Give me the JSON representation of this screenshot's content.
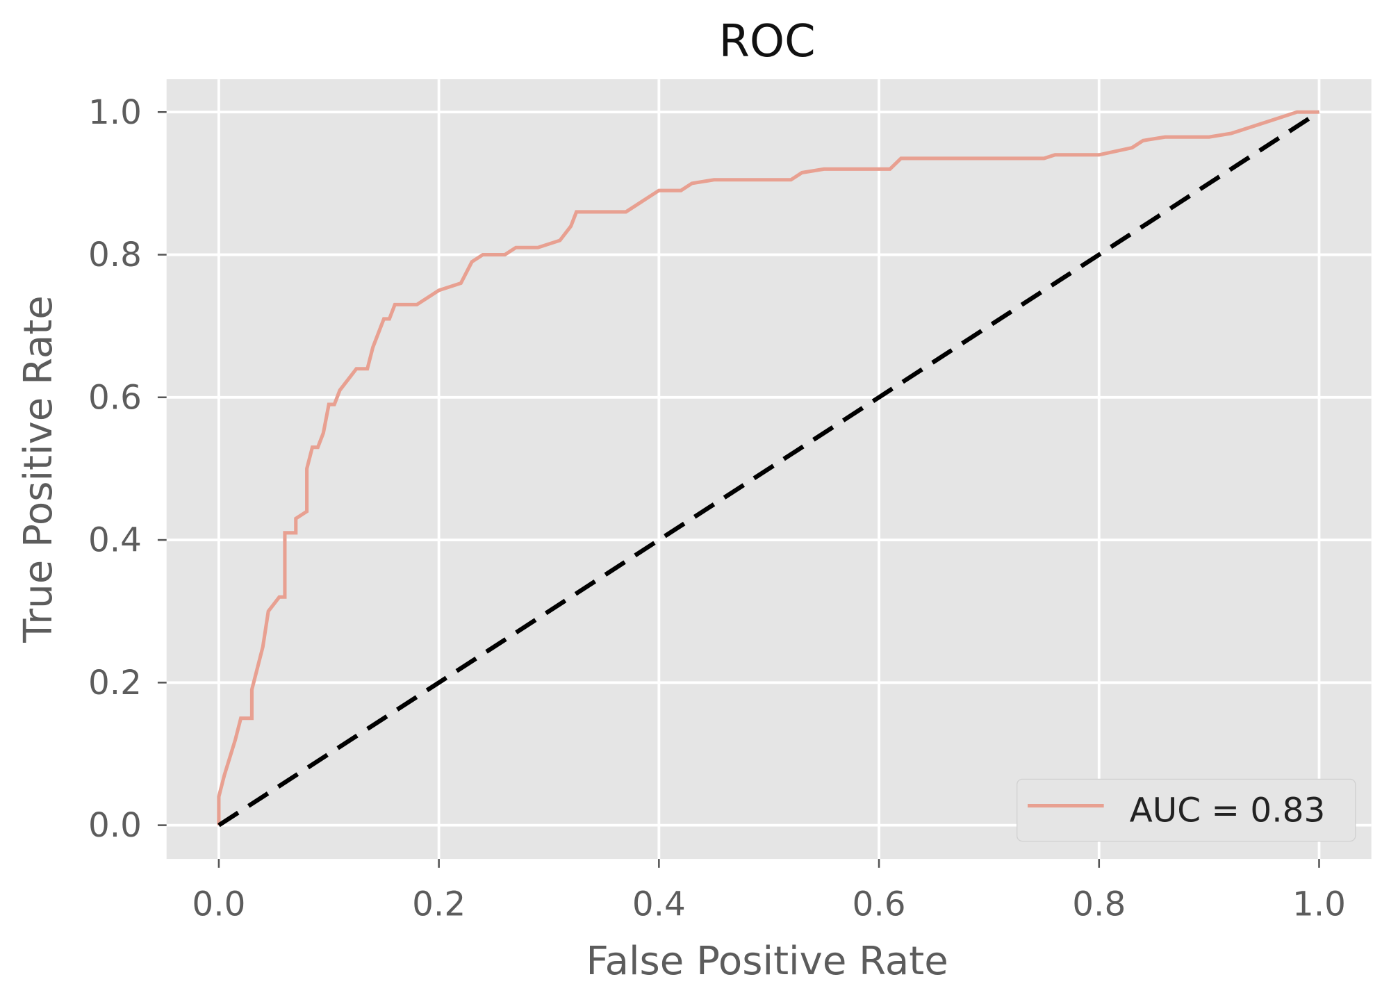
{
  "chart_data": {
    "type": "line",
    "title": "ROC",
    "xlabel": "False Positive Rate",
    "ylabel": "True Positive Rate",
    "xlim": [
      -0.05,
      1.05
    ],
    "ylim": [
      -0.05,
      1.05
    ],
    "xticks": [
      "0.0",
      "0.2",
      "0.4",
      "0.6",
      "0.8",
      "1.0"
    ],
    "yticks": [
      "0.0",
      "0.2",
      "0.4",
      "0.6",
      "0.8",
      "1.0"
    ],
    "grid": true,
    "legend_position": "lower-right",
    "background": "#e5e5e5",
    "series": [
      {
        "name": "AUC = 0.83",
        "color": "#e8a091",
        "x": [
          0,
          0,
          0.005,
          0.015,
          0.02,
          0.03,
          0.03,
          0.04,
          0.045,
          0.05,
          0.055,
          0.06,
          0.06,
          0.07,
          0.07,
          0.08,
          0.08,
          0.085,
          0.09,
          0.095,
          0.1,
          0.105,
          0.11,
          0.12,
          0.125,
          0.135,
          0.14,
          0.15,
          0.155,
          0.16,
          0.18,
          0.19,
          0.2,
          0.22,
          0.23,
          0.24,
          0.26,
          0.27,
          0.29,
          0.31,
          0.32,
          0.325,
          0.34,
          0.37,
          0.38,
          0.39,
          0.4,
          0.42,
          0.43,
          0.45,
          0.52,
          0.53,
          0.55,
          0.61,
          0.62,
          0.75,
          0.76,
          0.8,
          0.83,
          0.84,
          0.86,
          0.9,
          0.92,
          0.94,
          0.96,
          0.98,
          1.0
        ],
        "y": [
          0,
          0.04,
          0.07,
          0.12,
          0.15,
          0.15,
          0.19,
          0.25,
          0.3,
          0.31,
          0.32,
          0.32,
          0.41,
          0.41,
          0.43,
          0.44,
          0.5,
          0.53,
          0.53,
          0.55,
          0.59,
          0.59,
          0.61,
          0.63,
          0.64,
          0.64,
          0.67,
          0.71,
          0.71,
          0.73,
          0.73,
          0.74,
          0.75,
          0.76,
          0.79,
          0.8,
          0.8,
          0.81,
          0.81,
          0.82,
          0.84,
          0.86,
          0.86,
          0.86,
          0.87,
          0.88,
          0.89,
          0.89,
          0.9,
          0.905,
          0.905,
          0.915,
          0.92,
          0.92,
          0.935,
          0.935,
          0.94,
          0.94,
          0.95,
          0.96,
          0.965,
          0.965,
          0.97,
          0.98,
          0.99,
          1.0,
          1.0
        ]
      },
      {
        "color": "#000000",
        "style": "dashed",
        "x": [
          0,
          1
        ],
        "y": [
          0,
          1
        ]
      }
    ]
  }
}
